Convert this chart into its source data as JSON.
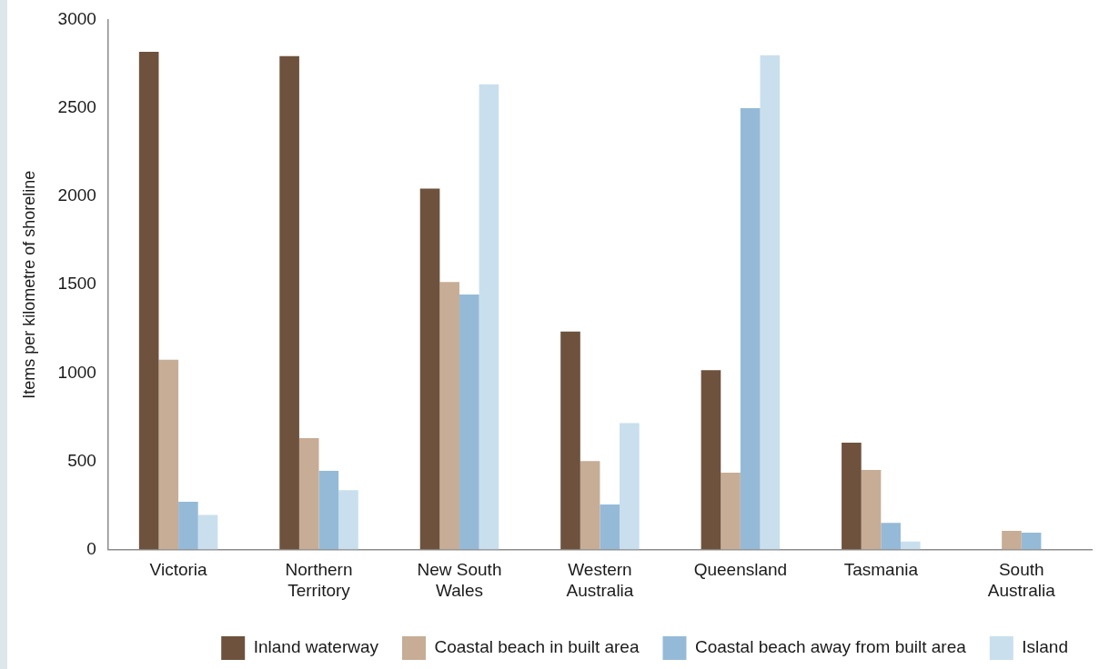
{
  "chart_data": {
    "type": "bar",
    "ylabel": "Items per kilometre of shoreline",
    "categories": [
      "Victoria",
      "Northern Territory",
      "New South Wales",
      "Western Australia",
      "Queensland",
      "Tasmania",
      "South Australia"
    ],
    "series": [
      {
        "name": "Inland waterway",
        "color": "#6e523d",
        "values": [
          2820,
          2795,
          2045,
          1235,
          1015,
          605,
          null
        ]
      },
      {
        "name": "Coastal beach in built area",
        "color": "#c7ad96",
        "values": [
          1075,
          630,
          1515,
          500,
          435,
          450,
          105
        ]
      },
      {
        "name": "Coastal beach away from built area",
        "color": "#95bad8",
        "values": [
          270,
          445,
          1445,
          255,
          2500,
          150,
          95
        ]
      },
      {
        "name": "Island",
        "color": "#c9dfee",
        "values": [
          195,
          335,
          2635,
          715,
          2800,
          45,
          null
        ]
      }
    ],
    "ylim": [
      0,
      3000
    ],
    "yticks": [
      0,
      500,
      1000,
      1500,
      2000,
      2500,
      3000
    ],
    "grid": false,
    "legend": "bottom"
  }
}
